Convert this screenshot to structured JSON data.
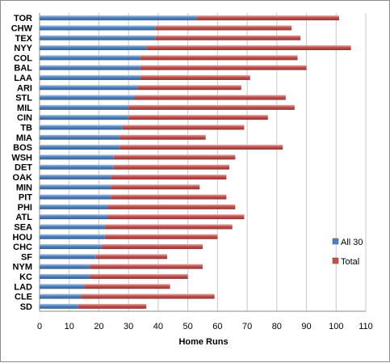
{
  "chart_data": {
    "type": "bar",
    "orientation": "horizontal",
    "stacked": true,
    "categories": [
      "TOR",
      "CHW",
      "TEX",
      "NYY",
      "COL",
      "BAL",
      "LAA",
      "ARI",
      "STL",
      "MIL",
      "CIN",
      "TB",
      "MIA",
      "BOS",
      "WSH",
      "DET",
      "OAK",
      "MIN",
      "PIT",
      "PHI",
      "ATL",
      "SEA",
      "HOU",
      "CHC",
      "SF",
      "NYM",
      "KC",
      "LAD",
      "CLE",
      "SD"
    ],
    "series": [
      {
        "name": "All 30",
        "color": "#4f81bd",
        "values": [
          53,
          39,
          39,
          36,
          34,
          34,
          34,
          33,
          32,
          30,
          30,
          28,
          27,
          27,
          25,
          25,
          24,
          24,
          24,
          23,
          23,
          22,
          22,
          21,
          19,
          17,
          17,
          15,
          14,
          13
        ]
      },
      {
        "name": "Total",
        "color": "#c0504d",
        "values": [
          101,
          85,
          88,
          105,
          87,
          90,
          71,
          68,
          83,
          86,
          77,
          69,
          56,
          82,
          66,
          64,
          63,
          54,
          63,
          66,
          69,
          65,
          60,
          55,
          43,
          55,
          50,
          44,
          59,
          36
        ]
      }
    ],
    "xlabel": "Home Runs",
    "xlim": [
      0,
      110
    ],
    "xticks": [
      "0",
      "10",
      "20",
      "30",
      "40",
      "50",
      "60",
      "70",
      "80",
      "90",
      "100",
      "110"
    ],
    "grid": "vertical",
    "legend_position": "right"
  }
}
